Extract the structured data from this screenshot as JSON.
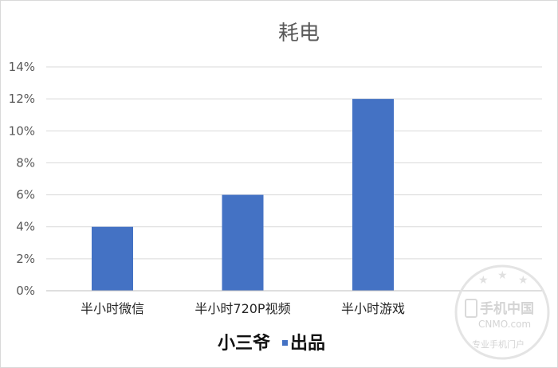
{
  "chart_data": {
    "type": "bar",
    "title": "耗电",
    "categories": [
      "半小时微信",
      "半小时720P视频",
      "半小时游戏"
    ],
    "values": [
      4,
      6,
      12
    ],
    "unit": "%",
    "ylim": [
      0,
      14
    ],
    "yticks": [
      "0%",
      "2%",
      "4%",
      "6%",
      "8%",
      "10%",
      "12%",
      "14%"
    ],
    "bar_color": "#4472C4",
    "grid": true,
    "legend": "none"
  },
  "credit": {
    "left": "小三爷",
    "right": "出品",
    "marker_color": "#4472C4"
  },
  "watermark": {
    "brand": "手机中国",
    "domain": "CNMO.com",
    "slogan": "专业手机门户"
  }
}
